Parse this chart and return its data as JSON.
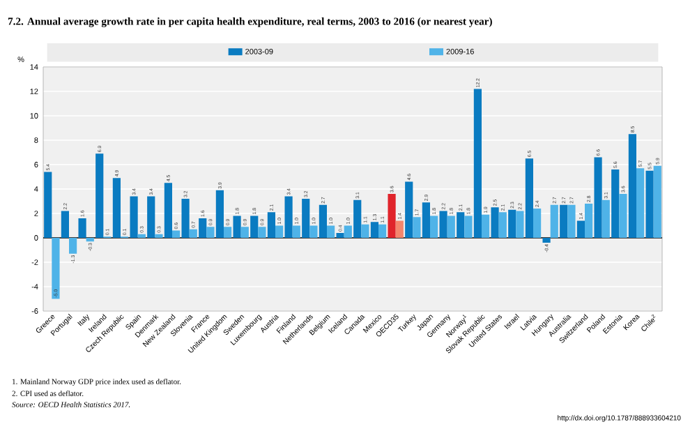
{
  "chart_data": {
    "type": "bar",
    "title": "7.2. Annual average growth rate in per capita health expenditure, real terms, 2003 to 2016 (or nearest year)",
    "ylabel": "%",
    "categories": [
      "Greece",
      "Portugal",
      "Italy",
      "Ireland",
      "Czech Republic",
      "Spain",
      "Denmark",
      "New Zealand",
      "Slovenia",
      "France",
      "United Kingdom",
      "Sweden",
      "Luxembourg",
      "Austria",
      "Finland",
      "Netherlands",
      "Belgium",
      "Iceland",
      "Canada",
      "Mexico",
      "OECD35",
      "Turkey",
      "Japan",
      "Germany",
      "Norway$^{1}$",
      "Slovak Republic",
      "United States",
      "Israel",
      "Latvia",
      "Hungary",
      "Australia",
      "Switzerland",
      "Poland",
      "Estonia",
      "Korea",
      "Chile$^{2}$"
    ],
    "series": [
      {
        "name": "2003-09",
        "color": "#0a7bc1",
        "colors": [
          "#0a7bc1",
          "#0a7bc1",
          "#0a7bc1",
          "#0a7bc1",
          "#0a7bc1",
          "#0a7bc1",
          "#0a7bc1",
          "#0a7bc1",
          "#0a7bc1",
          "#0a7bc1",
          "#0a7bc1",
          "#0a7bc1",
          "#0a7bc1",
          "#0a7bc1",
          "#0a7bc1",
          "#0a7bc1",
          "#0a7bc1",
          "#0a7bc1",
          "#0a7bc1",
          "#0a7bc1",
          "#e0242b",
          "#0a7bc1",
          "#0a7bc1",
          "#0a7bc1",
          "#0a7bc1",
          "#0a7bc1",
          "#0a7bc1",
          "#0a7bc1",
          "#0a7bc1",
          "#0a7bc1",
          "#0a7bc1",
          "#0a7bc1",
          "#0a7bc1",
          "#0a7bc1",
          "#0a7bc1",
          "#0a7bc1"
        ],
        "values": [
          5.4,
          2.2,
          1.6,
          6.9,
          4.9,
          3.4,
          3.4,
          4.5,
          3.2,
          1.6,
          3.9,
          1.8,
          1.8,
          2.1,
          3.4,
          3.2,
          2.7,
          0.4,
          3.1,
          1.3,
          3.6,
          4.6,
          2.9,
          2.2,
          2.1,
          12.2,
          2.5,
          2.3,
          6.5,
          -0.4,
          2.7,
          1.4,
          6.6,
          5.6,
          8.5,
          5.5
        ],
        "value_labels": [
          "5.4",
          "2.2",
          "1.6",
          "6.9",
          "4.9",
          "3.4",
          "3.4",
          "4.5",
          "3.2",
          "1.6",
          "3.9",
          "1.8",
          "1.8",
          "2.1",
          "3.4",
          "3.2",
          "2.7",
          "0.4",
          "3.1",
          "1.3",
          "3.6",
          "4.6",
          "2.9",
          "2.2",
          "2.1",
          "12.2",
          "2.5",
          "2.3",
          "6.5",
          "-0.4",
          "2.7",
          "1.4",
          "6.6",
          "5.6",
          "8.5",
          "5.5"
        ]
      },
      {
        "name": "2009-16",
        "color": "#4fb3e8",
        "colors": [
          "#4fb3e8",
          "#4fb3e8",
          "#4fb3e8",
          "#4fb3e8",
          "#4fb3e8",
          "#4fb3e8",
          "#4fb3e8",
          "#4fb3e8",
          "#4fb3e8",
          "#4fb3e8",
          "#4fb3e8",
          "#4fb3e8",
          "#4fb3e8",
          "#4fb3e8",
          "#4fb3e8",
          "#4fb3e8",
          "#4fb3e8",
          "#4fb3e8",
          "#4fb3e8",
          "#4fb3e8",
          "#f4866d",
          "#4fb3e8",
          "#4fb3e8",
          "#4fb3e8",
          "#4fb3e8",
          "#4fb3e8",
          "#4fb3e8",
          "#4fb3e8",
          "#4fb3e8",
          "#4fb3e8",
          "#4fb3e8",
          "#4fb3e8",
          "#4fb3e8",
          "#4fb3e8",
          "#4fb3e8",
          "#4fb3e8"
        ],
        "values": [
          -5.0,
          -1.3,
          -0.3,
          0.1,
          0.1,
          0.3,
          0.3,
          0.6,
          0.7,
          0.9,
          0.9,
          0.9,
          0.9,
          1.0,
          1.0,
          1.0,
          1.0,
          1.0,
          1.1,
          1.1,
          1.4,
          1.7,
          1.8,
          1.8,
          1.8,
          1.9,
          2.1,
          2.2,
          2.4,
          2.7,
          2.7,
          2.8,
          3.1,
          3.6,
          5.7,
          5.9
        ],
        "value_labels": [
          "-5.0",
          "-1.3",
          "-0.3",
          "0.1",
          "0.1",
          "0.3",
          "0.3",
          "0.6",
          "0.7",
          "0.9",
          "0.9",
          "0.9",
          "0.9",
          "1.0",
          "1.0",
          "1.0",
          "1.0",
          "1.0",
          "1.1",
          "1.1",
          "1.4",
          "1.7",
          "1.8",
          "1.8",
          "1.8",
          "1.9",
          "2.1",
          "2.2",
          "2.4",
          "2.7",
          "2.7",
          "2.8",
          "3.1",
          "3.6",
          "5.7",
          "5.9"
        ]
      }
    ],
    "ylim": [
      -6,
      14
    ],
    "yticks": [
      -6,
      -4,
      -2,
      0,
      2,
      4,
      6,
      8,
      10,
      12,
      14
    ],
    "grid": "y",
    "legend": "top",
    "annotations": [
      "1. Mainland Norway GDP price index used as deflator.",
      "2. CPI used as deflator.",
      "Source: OECD Health Statistics 2017.",
      "http://dx.doi.org/10.1787/888933604210"
    ]
  }
}
